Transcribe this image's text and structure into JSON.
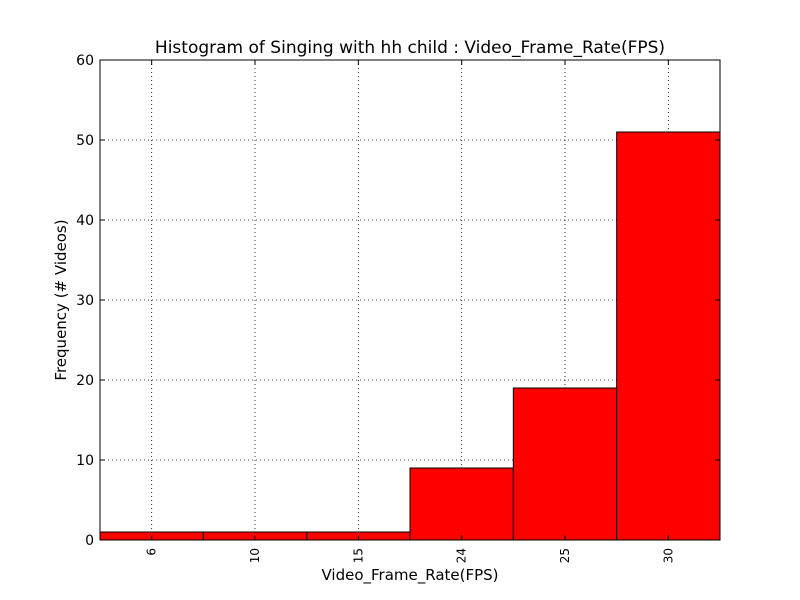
{
  "chart_data": {
    "type": "bar",
    "title": "Histogram of Singing with hh child : Video_Frame_Rate(FPS)",
    "xlabel": "Video_Frame_Rate(FPS)",
    "ylabel": "Frequency (# Videos)",
    "categories": [
      "6",
      "10",
      "15",
      "24",
      "25",
      "30"
    ],
    "values": [
      1,
      1,
      1,
      9,
      19,
      51
    ],
    "ylim": [
      0,
      60
    ],
    "yticks": [
      0,
      10,
      20,
      30,
      40,
      50,
      60
    ],
    "grid": true,
    "bar_color": "#ff0000",
    "edge_color": "#000000"
  }
}
